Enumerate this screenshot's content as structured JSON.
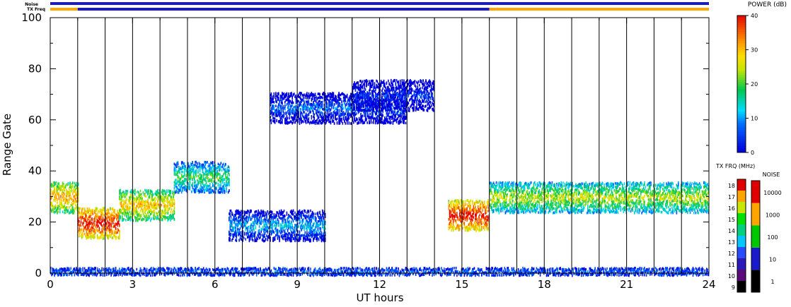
{
  "chart_data": [
    {
      "type": "heatmap",
      "xlabel": "UT hours",
      "ylabel": "Range Gate",
      "xlim": [
        0,
        24
      ],
      "ylim": [
        0,
        100
      ],
      "x_ticks": [
        "0",
        "3",
        "6",
        "9",
        "12",
        "15",
        "18",
        "21",
        "24"
      ],
      "y_ticks": [
        "0",
        "20",
        "40",
        "60",
        "80",
        "100"
      ],
      "scan_boundaries_ut": [
        1,
        2,
        3,
        4,
        5,
        6,
        7,
        8,
        9,
        10,
        11,
        12,
        13,
        14,
        15,
        16,
        17,
        18,
        19,
        20,
        21,
        22,
        23
      ],
      "colorbar": {
        "label": "POWER (dB)",
        "ticks": [
          "0",
          "10",
          "20",
          "30",
          "40"
        ],
        "range": [
          0,
          40
        ]
      },
      "echo_regions": [
        {
          "ut": [
            0,
            1
          ],
          "gate_center": 30,
          "power_db": 32
        },
        {
          "ut": [
            1,
            2.5
          ],
          "gate_center": 20,
          "power_db": 40
        },
        {
          "ut": [
            2.5,
            4.5
          ],
          "gate_center": 27,
          "power_db": 30
        },
        {
          "ut": [
            4.5,
            6.5
          ],
          "gate_center": 38,
          "power_db": 20
        },
        {
          "ut": [
            6.5,
            10
          ],
          "gate_center": 19,
          "power_db": 12
        },
        {
          "ut": [
            8,
            13
          ],
          "gate_center": 65,
          "power_db": 8
        },
        {
          "ut": [
            11,
            14
          ],
          "gate_center": 70,
          "power_db": 5
        },
        {
          "ut": [
            14.5,
            16
          ],
          "gate_center": 23,
          "power_db": 40
        },
        {
          "ut": [
            16,
            24
          ],
          "gate_center": 30,
          "power_db": 25
        },
        {
          "ut": [
            0,
            24
          ],
          "gate_center": 1,
          "power_db": 6
        }
      ]
    },
    {
      "type": "area",
      "title": "Noise",
      "x": [
        0,
        1,
        16,
        24
      ],
      "color": "#1a1acc"
    },
    {
      "type": "area",
      "title": "TX Freq",
      "x": [
        0,
        1,
        16,
        24
      ],
      "segments": [
        {
          "ut": [
            0,
            1
          ],
          "color": "#ffa500"
        },
        {
          "ut": [
            1,
            16
          ],
          "color": "#1a1acc"
        },
        {
          "ut": [
            16,
            24
          ],
          "color": "#ffa500"
        }
      ]
    },
    {
      "type": "heatmap",
      "title": "TX FRQ (MHz)",
      "ticks": [
        "9",
        "10",
        "11",
        "12",
        "13",
        "14",
        "15",
        "16",
        "17",
        "18"
      ],
      "range": [
        9,
        18
      ]
    },
    {
      "type": "heatmap",
      "title": "NOISE",
      "ticks": [
        "1",
        "10",
        "100",
        "1000",
        "10000"
      ],
      "scale": "log"
    }
  ]
}
